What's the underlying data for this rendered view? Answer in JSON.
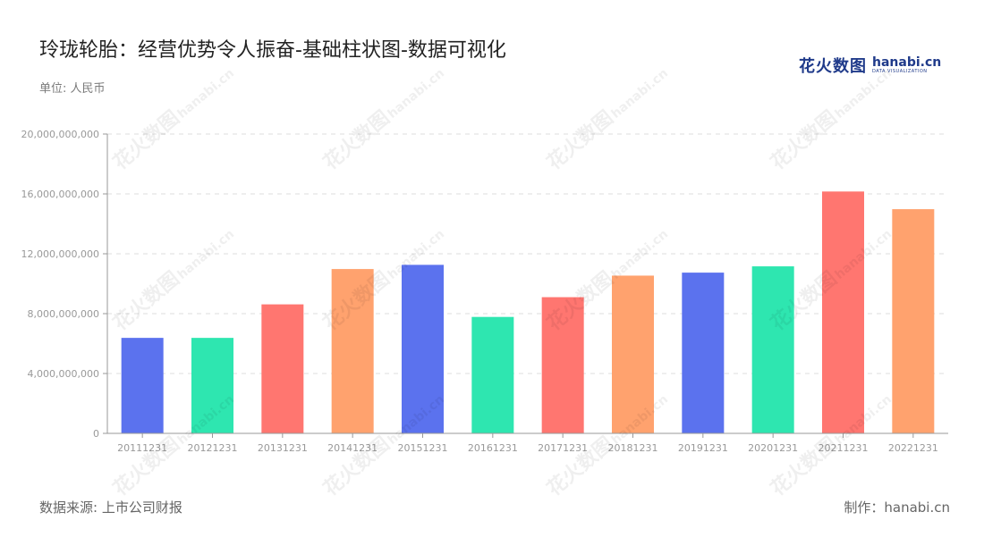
{
  "header": {
    "title": "玲珑轮胎：经营优势令人振奋-基础柱状图-数据可视化",
    "unit": "单位: 人民币"
  },
  "logo": {
    "cn": "花火数图",
    "en": "hanabi.cn",
    "sub": "DATA VISUALIZATION"
  },
  "footer": {
    "source": "数据来源: 上市公司财报",
    "credit": "制作：hanabi.cn"
  },
  "watermark": {
    "cn": "花火数图",
    "en": "hanabi.cn"
  },
  "chart_data": {
    "type": "bar",
    "categories": [
      "20111231",
      "20121231",
      "20131231",
      "20141231",
      "20151231",
      "20161231",
      "20171231",
      "20181231",
      "20191231",
      "20201231",
      "20211231",
      "20221231"
    ],
    "values": [
      6380000000,
      6380000000,
      8620000000,
      10980000000,
      11260000000,
      7780000000,
      9100000000,
      10540000000,
      10740000000,
      11160000000,
      16160000000,
      14980000000
    ],
    "colors": [
      "#5B72EE",
      "#2EE6B0",
      "#FF7670",
      "#FFA26E",
      "#5B72EE",
      "#2EE6B0",
      "#FF7670",
      "#FFA26E",
      "#5B72EE",
      "#2EE6B0",
      "#FF7670",
      "#FFA26E"
    ],
    "ylim": [
      0,
      20000000000
    ],
    "yticks": [
      "0",
      "4,000,000,000",
      "8,000,000,000",
      "12,000,000,000",
      "16,000,000,000",
      "20,000,000,000"
    ],
    "grid": true,
    "grid_style": "dashed",
    "xlabel": "",
    "ylabel": "",
    "legend": "none",
    "axis_color": "#999999",
    "grid_color": "#dddddd",
    "tick_label_color": "#999999"
  }
}
